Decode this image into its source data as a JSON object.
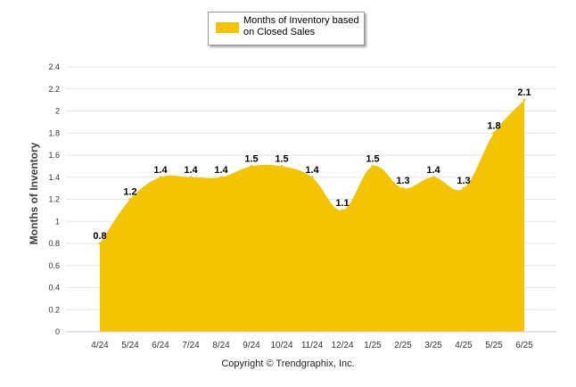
{
  "legend": {
    "label": "Months of Inventory based on Closed Sales"
  },
  "footer": {
    "copyright": "Copyright © Trendgraphix, Inc."
  },
  "colors": {
    "area_fill": "#f5c400",
    "grid": "#e6e6e6",
    "text": "#000000"
  },
  "chart_data": {
    "type": "area",
    "categories": [
      "4/24",
      "5/24",
      "6/24",
      "7/24",
      "8/24",
      "9/24",
      "10/24",
      "11/24",
      "12/24",
      "1/25",
      "2/25",
      "3/25",
      "4/25",
      "5/25",
      "6/25"
    ],
    "series": [
      {
        "name": "Months of Inventory based on Closed Sales",
        "values": [
          0.8,
          1.2,
          1.4,
          1.4,
          1.4,
          1.5,
          1.5,
          1.4,
          1.1,
          1.5,
          1.3,
          1.4,
          1.3,
          1.8,
          2.1
        ]
      }
    ],
    "data_labels": [
      "0.8",
      "1.2",
      "1.4",
      "1.4",
      "1.4",
      "1.5",
      "1.5",
      "1.4",
      "1.1",
      "1.5",
      "1.3",
      "1.4",
      "1.3",
      "1.8",
      "2.1"
    ],
    "ylabel": "Months of Inventory",
    "xlabel": "",
    "ylim": [
      0,
      2.4
    ],
    "yticks": [
      "0",
      "0.2",
      "0.4",
      "0.6",
      "0.8",
      "1",
      "1.2",
      "1.4",
      "1.6",
      "1.8",
      "2",
      "2.2",
      "2.4"
    ],
    "grid": true,
    "legend_position": "top-center"
  }
}
